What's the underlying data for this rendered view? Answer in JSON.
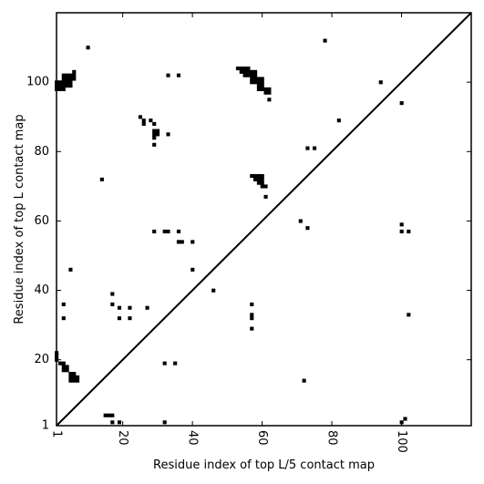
{
  "chart_data": {
    "type": "heatmap",
    "title": "",
    "xlabel": "Residue index of top L/5 contact map",
    "ylabel": "Residue index of top L contact map",
    "xlim": [
      1,
      120
    ],
    "ylim": [
      1,
      120
    ],
    "x_ticks": [
      1,
      20,
      40,
      60,
      80,
      100
    ],
    "y_ticks": [
      1,
      20,
      40,
      60,
      80,
      100
    ],
    "x_tick_rotation": -90,
    "diagonal_line": true,
    "grid": false,
    "color": "#000000",
    "upper_triangle_contacts": [
      [
        1,
        98
      ],
      [
        1,
        99
      ],
      [
        1,
        100
      ],
      [
        2,
        98
      ],
      [
        2,
        99
      ],
      [
        2,
        100
      ],
      [
        3,
        98
      ],
      [
        3,
        99
      ],
      [
        3,
        100
      ],
      [
        3,
        101
      ],
      [
        3,
        102
      ],
      [
        4,
        99
      ],
      [
        4,
        100
      ],
      [
        4,
        101
      ],
      [
        4,
        102
      ],
      [
        5,
        99
      ],
      [
        5,
        100
      ],
      [
        5,
        101
      ],
      [
        5,
        102
      ],
      [
        6,
        101
      ],
      [
        6,
        102
      ],
      [
        6,
        103
      ],
      [
        10,
        110
      ],
      [
        33,
        102
      ],
      [
        36,
        102
      ],
      [
        53,
        104
      ],
      [
        54,
        103
      ],
      [
        54,
        104
      ],
      [
        55,
        102
      ],
      [
        55,
        103
      ],
      [
        55,
        104
      ],
      [
        56,
        102
      ],
      [
        56,
        103
      ],
      [
        56,
        104
      ],
      [
        57,
        100
      ],
      [
        57,
        101
      ],
      [
        57,
        102
      ],
      [
        57,
        103
      ],
      [
        58,
        100
      ],
      [
        58,
        101
      ],
      [
        58,
        102
      ],
      [
        58,
        103
      ],
      [
        59,
        98
      ],
      [
        59,
        99
      ],
      [
        59,
        100
      ],
      [
        59,
        101
      ],
      [
        60,
        98
      ],
      [
        60,
        99
      ],
      [
        60,
        100
      ],
      [
        60,
        101
      ],
      [
        61,
        97
      ],
      [
        61,
        98
      ],
      [
        62,
        97
      ],
      [
        62,
        98
      ],
      [
        62,
        95
      ],
      [
        78,
        112
      ],
      [
        82,
        89
      ],
      [
        94,
        100
      ],
      [
        100,
        94
      ],
      [
        25,
        90
      ],
      [
        26,
        88
      ],
      [
        26,
        89
      ],
      [
        28,
        89
      ],
      [
        29,
        85
      ],
      [
        29,
        86
      ],
      [
        29,
        88
      ],
      [
        30,
        85
      ],
      [
        30,
        86
      ],
      [
        29,
        84
      ],
      [
        29,
        82
      ],
      [
        33,
        85
      ],
      [
        14,
        72
      ],
      [
        57,
        73
      ],
      [
        58,
        72
      ],
      [
        58,
        73
      ],
      [
        59,
        71
      ],
      [
        59,
        72
      ],
      [
        59,
        73
      ],
      [
        60,
        70
      ],
      [
        60,
        71
      ],
      [
        60,
        72
      ],
      [
        60,
        73
      ],
      [
        61,
        70
      ],
      [
        61,
        67
      ],
      [
        73,
        81
      ],
      [
        75,
        81
      ],
      [
        71,
        60
      ],
      [
        73,
        58
      ],
      [
        100,
        59
      ],
      [
        100,
        57
      ],
      [
        102,
        57
      ],
      [
        29,
        57
      ],
      [
        32,
        57
      ],
      [
        33,
        57
      ],
      [
        36,
        57
      ],
      [
        36,
        54
      ],
      [
        37,
        54
      ],
      [
        40,
        54
      ],
      [
        5,
        46
      ],
      [
        40,
        46
      ],
      [
        46,
        40
      ]
    ],
    "lower_triangle_contacts": [
      [
        3,
        36
      ],
      [
        3,
        32
      ],
      [
        17,
        39
      ],
      [
        17,
        36
      ],
      [
        19,
        35
      ],
      [
        19,
        32
      ],
      [
        22,
        35
      ],
      [
        22,
        32
      ],
      [
        27,
        35
      ],
      [
        57,
        36
      ],
      [
        57,
        33
      ],
      [
        57,
        32
      ],
      [
        57,
        29
      ],
      [
        102,
        33
      ],
      [
        72,
        14
      ],
      [
        1,
        20
      ],
      [
        1,
        21
      ],
      [
        1,
        22
      ],
      [
        2,
        19
      ],
      [
        3,
        19
      ],
      [
        3,
        18
      ],
      [
        3,
        17
      ],
      [
        4,
        17
      ],
      [
        4,
        18
      ],
      [
        5,
        16
      ],
      [
        5,
        15
      ],
      [
        5,
        14
      ],
      [
        6,
        14
      ],
      [
        6,
        15
      ],
      [
        6,
        16
      ],
      [
        7,
        14
      ],
      [
        7,
        15
      ],
      [
        32,
        19
      ],
      [
        35,
        19
      ],
      [
        15,
        4
      ],
      [
        16,
        4
      ],
      [
        17,
        4
      ],
      [
        17,
        2
      ],
      [
        19,
        2
      ],
      [
        32,
        2
      ],
      [
        100,
        2
      ],
      [
        101,
        3
      ]
    ]
  }
}
